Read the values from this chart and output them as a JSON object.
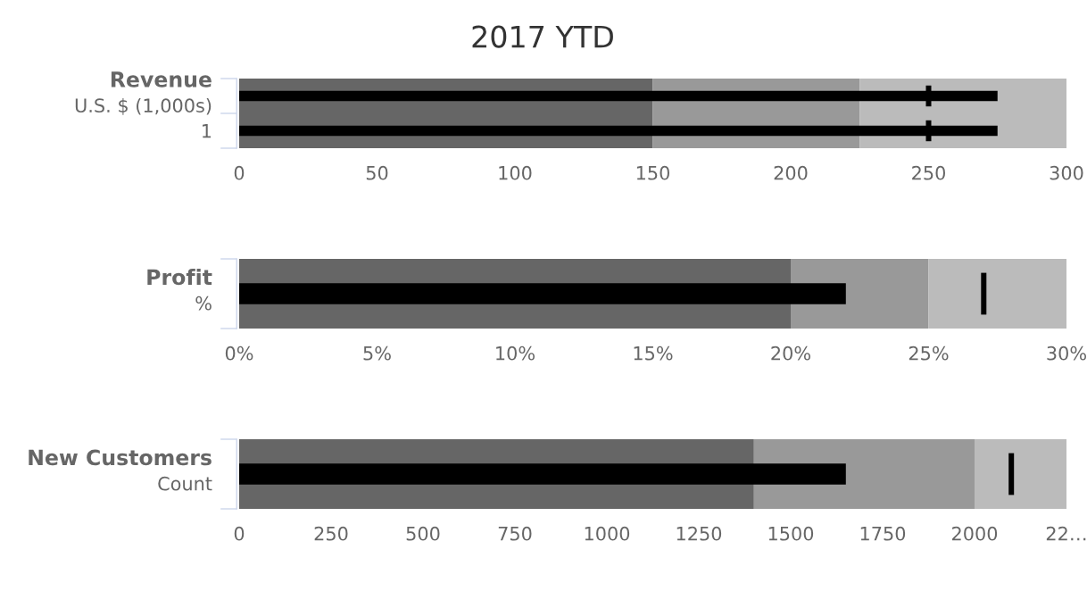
{
  "chart_data": [
    {
      "type": "bar",
      "orientation": "horizontal",
      "title": "2017 YTD",
      "categories": [
        "Revenue\nU.S. $ (1,000s)",
        "1"
      ],
      "series": [
        {
          "color": "#000000",
          "values": [
            275,
            275
          ]
        }
      ],
      "ref_lines": [
        {
          "axis": "x",
          "value": 250,
          "color": "#000000"
        }
      ],
      "bands": [
        {
          "axis": "x",
          "from": 0,
          "to": 150,
          "color": "#666666"
        },
        {
          "axis": "x",
          "from": 150,
          "to": 225,
          "color": "#999999"
        },
        {
          "axis": "x",
          "from": 225,
          "to": 300,
          "color": "#bbbbbb"
        }
      ],
      "xlim": [
        0,
        300
      ],
      "xticks": [
        0,
        50,
        100,
        150,
        200,
        250,
        300
      ]
    },
    {
      "type": "bar",
      "orientation": "horizontal",
      "categories": [
        "Profit\n%"
      ],
      "series": [
        {
          "color": "#000000",
          "values": [
            22
          ]
        }
      ],
      "ref_lines": [
        {
          "axis": "x",
          "value": 27,
          "color": "#000000"
        }
      ],
      "bands": [
        {
          "axis": "x",
          "from": 0,
          "to": 20,
          "color": "#666666"
        },
        {
          "axis": "x",
          "from": 20,
          "to": 25,
          "color": "#999999"
        },
        {
          "axis": "x",
          "from": 25,
          "to": 30,
          "color": "#bbbbbb"
        }
      ],
      "xlim": [
        0,
        30
      ],
      "xticks": [
        {
          "value": 0,
          "label": "0%"
        },
        {
          "value": 5,
          "label": "5%"
        },
        {
          "value": 10,
          "label": "10%"
        },
        {
          "value": 15,
          "label": "15%"
        },
        {
          "value": 20,
          "label": "20%"
        },
        {
          "value": 25,
          "label": "25%"
        },
        {
          "value": 30,
          "label": "30%"
        }
      ]
    },
    {
      "type": "bar",
      "orientation": "horizontal",
      "categories": [
        "New Customers\nCount"
      ],
      "series": [
        {
          "color": "#000000",
          "values": [
            1650
          ]
        }
      ],
      "ref_lines": [
        {
          "axis": "x",
          "value": 2100,
          "color": "#000000"
        }
      ],
      "bands": [
        {
          "axis": "x",
          "from": 0,
          "to": 1400,
          "color": "#666666"
        },
        {
          "axis": "x",
          "from": 1400,
          "to": 2000,
          "color": "#999999"
        },
        {
          "axis": "x",
          "from": 2000,
          "to": 2250,
          "color": "#bbbbbb"
        }
      ],
      "xlim": [
        0,
        2250
      ],
      "xticks": [
        0,
        250,
        500,
        750,
        1000,
        1250,
        1500,
        1750,
        2000,
        {
          "value": 2250,
          "label": "22…"
        }
      ]
    }
  ]
}
